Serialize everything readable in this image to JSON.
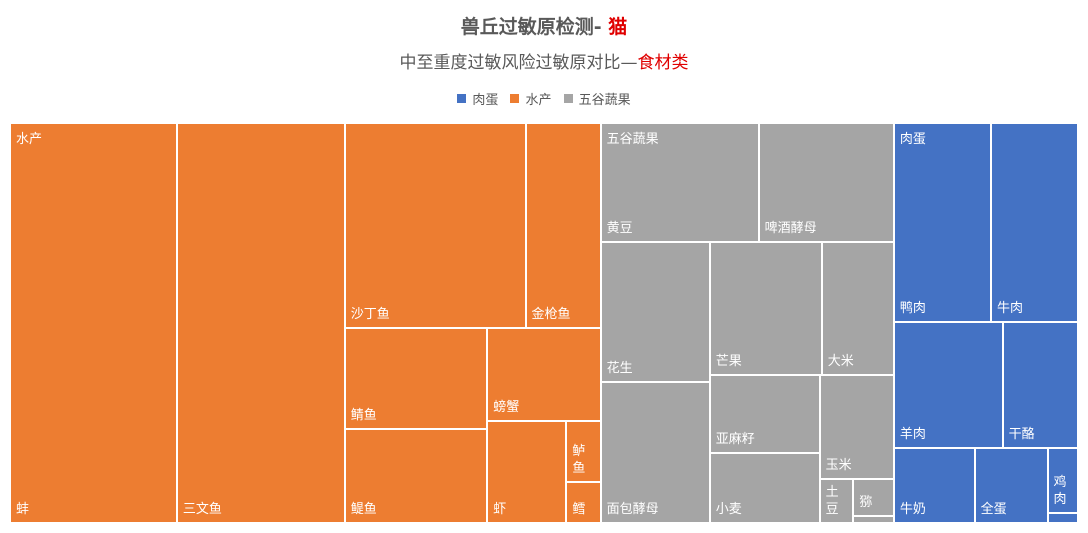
{
  "title": {
    "main": "兽丘过敏原检测- ",
    "highlight": "猫"
  },
  "subtitle": {
    "main": "中至重度过敏风险过敏原对比—",
    "highlight": "食材类"
  },
  "colors": {
    "肉蛋": "#4472C4",
    "水产": "#ED7D31",
    "五谷蔬果": "#A5A5A5",
    "title_highlight": "#E00000"
  },
  "chart_data": {
    "type": "treemap",
    "title": "兽丘过敏原检测- 猫",
    "subtitle": "中至重度过敏风险过敏原对比—食材类",
    "legend": [
      "肉蛋",
      "水产",
      "五谷蔬果"
    ],
    "legend_position": "top",
    "groups": [
      {
        "name": "水产",
        "items": [
          {
            "name": "蚌",
            "value": 668
          },
          {
            "name": "三文鱼",
            "value": 672
          },
          {
            "name": "沙丁鱼",
            "value": 371
          },
          {
            "name": "金枪鱼",
            "value": 154
          },
          {
            "name": "鲭鱼",
            "value": 144
          },
          {
            "name": "鳀鱼",
            "value": 134
          },
          {
            "name": "螃蟹",
            "value": 105
          },
          {
            "name": "虾",
            "value": 81
          },
          {
            "name": "鲈鱼",
            "value": 21
          },
          {
            "name": "鳕",
            "value": 14
          }
        ]
      },
      {
        "name": "五谷蔬果",
        "items": [
          {
            "name": "黄豆",
            "value": 188
          },
          {
            "name": "啤酒酵母",
            "value": 161
          },
          {
            "name": "花生",
            "value": 153
          },
          {
            "name": "面包酵母",
            "value": 154
          },
          {
            "name": "芒果",
            "value": 149
          },
          {
            "name": "大米",
            "value": 96
          },
          {
            "name": "亚麻籽",
            "value": 86
          },
          {
            "name": "小麦",
            "value": 77
          },
          {
            "name": "玉米",
            "value": 77
          },
          {
            "name": "土豆",
            "value": 15
          },
          {
            "name": "猕",
            "value": 15
          },
          {
            "name": "",
            "value": 3
          }
        ]
      },
      {
        "name": "肉蛋",
        "items": [
          {
            "name": "鸭肉",
            "value": 193
          },
          {
            "name": "牛肉",
            "value": 173
          },
          {
            "name": "羊肉",
            "value": 137
          },
          {
            "name": "干酪",
            "value": 95
          },
          {
            "name": "牛奶",
            "value": 61
          },
          {
            "name": "全蛋",
            "value": 55
          },
          {
            "name": "鸡肉",
            "value": 20
          },
          {
            "name": "",
            "value": 3
          }
        ]
      }
    ]
  }
}
